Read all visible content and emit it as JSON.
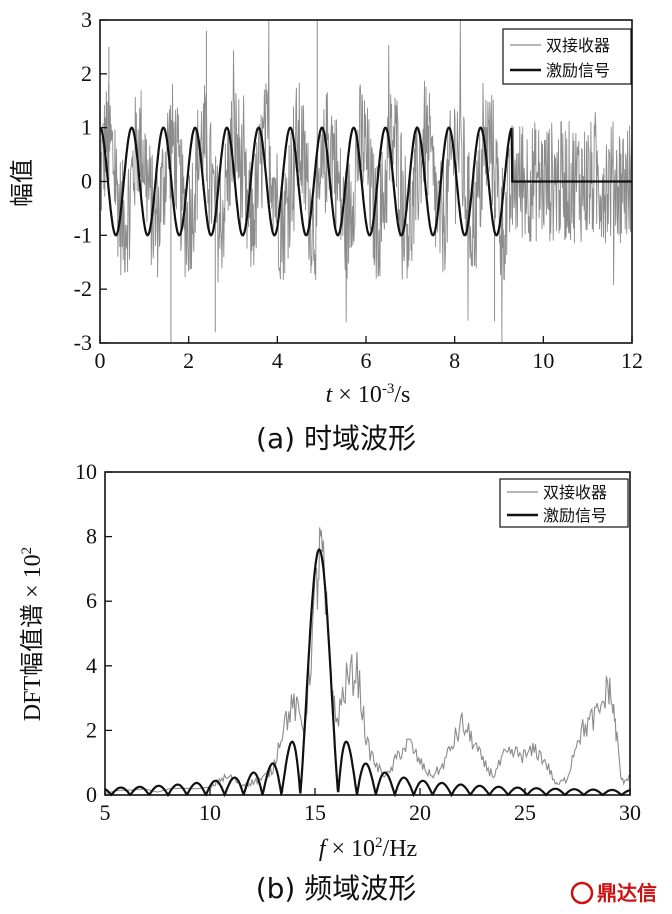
{
  "chart_data": [
    {
      "type": "line",
      "caption": "(a)  时域波形",
      "ylabel": "幅值",
      "xlabel_var": "t",
      "xlabel_mid": " × 10",
      "xlabel_exp": "-3",
      "xlabel_unit": "/s",
      "xlim": [
        0,
        12
      ],
      "ylim": [
        -3,
        3
      ],
      "xticks": [
        0,
        2,
        4,
        6,
        8,
        10,
        12
      ],
      "yticks": [
        -3,
        -2,
        -1,
        0,
        1,
        2,
        3
      ],
      "legend": "top-right",
      "grid": false,
      "series": [
        {
          "name": "双接收器",
          "description": "noisy received signal, amplitude about ±1 with spikes to ±3, 0–12",
          "noise_amplitude": 1.0,
          "spikes": [
            [
              0.2,
              2.5
            ],
            [
              2.4,
              2.8
            ],
            [
              4.9,
              3.0
            ],
            [
              2.6,
              -2.8
            ],
            [
              8.9,
              -2.6
            ],
            [
              1.6,
              -3.0
            ]
          ]
        },
        {
          "name": "激励信号",
          "description": "sinusoidal burst of 13 cycles, amplitude 1, then zero",
          "amplitude": 1,
          "burst_end": 9.3,
          "cycles": 13
        }
      ]
    },
    {
      "type": "line",
      "caption": "(b)  频域波形",
      "ylabel": "DFT幅值谱 × 10",
      "ylabel_exp": "2",
      "xlabel_var": "f",
      "xlabel_mid": " × 10",
      "xlabel_exp": "2",
      "xlabel_unit": "/Hz",
      "xlim": [
        5,
        30
      ],
      "ylim": [
        0,
        10
      ],
      "xticks": [
        5,
        10,
        15,
        20,
        25,
        30
      ],
      "yticks": [
        0,
        2,
        4,
        6,
        8,
        10
      ],
      "legend": "top-right",
      "grid": false,
      "series": [
        {
          "name": "双接收器",
          "x": [
            5,
            10,
            10.5,
            11,
            11.5,
            12,
            12.5,
            13,
            13.5,
            14,
            14.5,
            15,
            15.3,
            15.7,
            16,
            16.5,
            17,
            17.5,
            18,
            18.5,
            19,
            19.5,
            20,
            20.5,
            21,
            21.5,
            22,
            22.5,
            23,
            23.5,
            24,
            24.5,
            25,
            25.5,
            26,
            26.5,
            27,
            27.5,
            28,
            28.5,
            29,
            29.3,
            29.6,
            30
          ],
          "y": [
            0.1,
            0.2,
            0.5,
            0.55,
            0.3,
            0.4,
            0.5,
            0.8,
            2.2,
            2.8,
            2.0,
            6.0,
            7.7,
            4.0,
            2.2,
            3.5,
            3.9,
            1.5,
            0.8,
            0.6,
            1.3,
            1.6,
            1.0,
            0.6,
            0.8,
            1.5,
            2.2,
            1.7,
            1.0,
            0.6,
            1.2,
            1.3,
            1.2,
            1.4,
            1.0,
            0.3,
            0.5,
            1.8,
            2.2,
            2.5,
            3.4,
            2.2,
            0.4,
            0.6
          ]
        },
        {
          "name": "激励信号",
          "description": "sinc-shaped spectrum with main lobe at 15.2, peak 7.6",
          "center": 15.2,
          "peak": 7.6,
          "lobe_width": 0.9
        }
      ]
    }
  ],
  "watermark": "鼎达信",
  "colors": {
    "received": "#8c8c8c",
    "excitation": "#111111",
    "axes": "#111111",
    "watermark": "#cc1111"
  }
}
